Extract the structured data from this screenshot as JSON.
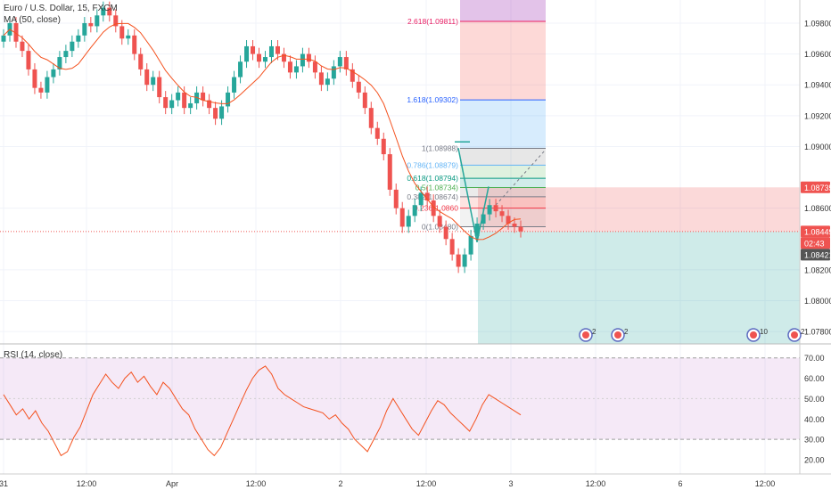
{
  "header": {
    "symbol": "Euro / U.S. Dollar, 15, FXCM",
    "ma_label": "MA (50, close)",
    "rsi_label": "RSI (14, close)"
  },
  "chart_data": [
    {
      "type": "candlestick",
      "title": "Euro / U.S. Dollar, 15, FXCM",
      "overlay_series": [
        {
          "name": "MA (50, close)"
        }
      ],
      "ylim": [
        1.0772,
        1.0995
      ],
      "y_ticks": [
        "1.09800",
        "1.09600",
        "1.09400",
        "1.09200",
        "1.09000",
        "1.08600",
        "1.08200",
        "1.08000",
        "1.07800"
      ],
      "x_ticks": [
        "31",
        "12:00",
        "Apr",
        "12:00",
        "2",
        "12:00",
        "3",
        "12:00",
        "6",
        "12:00"
      ],
      "price_badges": [
        {
          "value": "1.08735",
          "color": "#ef5350"
        },
        {
          "value": "1.08449",
          "color": "#ef5350"
        },
        {
          "value": "02:43",
          "color": "#ef5350"
        },
        {
          "value": "1.08421",
          "color": "#555555"
        }
      ],
      "fibonacci": [
        {
          "label": "2.618(1.09811)",
          "level": 2.618,
          "price": 1.09811
        },
        {
          "label": "1.618(1.09302)",
          "level": 1.618,
          "price": 1.09302
        },
        {
          "label": "1(1.08988)",
          "level": 1,
          "price": 1.08988
        },
        {
          "label": "0.786(1.08879)",
          "level": 0.786,
          "price": 1.08879
        },
        {
          "label": "0.618(1.08794)",
          "level": 0.618,
          "price": 1.08794
        },
        {
          "label": "0.5(1.08734)",
          "level": 0.5,
          "price": 1.08734
        },
        {
          "label": "0.382(1.08674)",
          "level": 0.382,
          "price": 1.08674
        },
        {
          "label": "0.236(1.0860",
          "level": 0.236,
          "price": 1.086
        },
        {
          "label": "0(1.08480)",
          "level": 0,
          "price": 1.0848
        }
      ],
      "position": {
        "entry": 1.08449,
        "stop": 1.08735,
        "target": 1.0772
      },
      "events": [
        {
          "label": "2"
        },
        {
          "label": "2"
        },
        {
          "label": "10"
        },
        {
          "label": "2"
        }
      ],
      "closes": [
        1.0972,
        1.098,
        1.0968,
        1.0962,
        1.095,
        1.0938,
        1.0935,
        1.0945,
        1.095,
        1.0958,
        1.0962,
        1.0968,
        1.0972,
        1.098,
        1.0978,
        1.0985,
        1.099,
        1.0985,
        1.0978,
        1.097,
        1.0972,
        1.096,
        1.095,
        1.094,
        1.0945,
        1.0932,
        1.0925,
        1.093,
        1.0935,
        1.0925,
        1.0928,
        1.0935,
        1.093,
        1.0925,
        1.0918,
        1.0926,
        1.0935,
        1.0945,
        1.0955,
        1.0965,
        1.096,
        1.0955,
        1.0958,
        1.0965,
        1.096,
        1.0955,
        1.0948,
        1.0952,
        1.096,
        1.0955,
        1.0948,
        1.094,
        1.0944,
        1.0952,
        1.0958,
        1.095,
        1.0942,
        1.0935,
        1.0925,
        1.0912,
        1.0905,
        1.0895,
        1.0872,
        1.086,
        1.0848,
        1.0855,
        1.0862,
        1.087,
        1.0865,
        1.0855,
        1.0848,
        1.084,
        1.083,
        1.0822,
        1.083,
        1.0842,
        1.085,
        1.0856,
        1.0862,
        1.0858,
        1.0855,
        1.085,
        1.0848,
        1.0845
      ]
    },
    {
      "type": "line",
      "title": "RSI (14, close)",
      "ylim": [
        13,
        76
      ],
      "y_ticks": [
        "70.00",
        "60.00",
        "50.00",
        "40.00",
        "30.00",
        "20.00"
      ],
      "bands": [
        30,
        70
      ],
      "series": [
        {
          "name": "RSI (14, close)",
          "values": [
            52,
            47,
            42,
            45,
            40,
            44,
            38,
            34,
            28,
            22,
            24,
            31,
            36,
            44,
            52,
            57,
            62,
            58,
            55,
            60,
            63,
            58,
            61,
            56,
            52,
            58,
            55,
            50,
            45,
            42,
            35,
            30,
            25,
            22,
            26,
            33,
            40,
            47,
            54,
            60,
            64,
            66,
            62,
            55,
            52,
            50,
            48,
            46,
            45,
            44,
            43,
            40,
            42,
            38,
            35,
            30,
            27,
            24,
            30,
            36,
            44,
            50,
            45,
            40,
            35,
            32,
            38,
            44,
            49,
            47,
            43,
            40,
            37,
            34,
            40,
            47,
            52,
            50,
            48,
            46,
            44,
            42
          ]
        }
      ]
    }
  ]
}
